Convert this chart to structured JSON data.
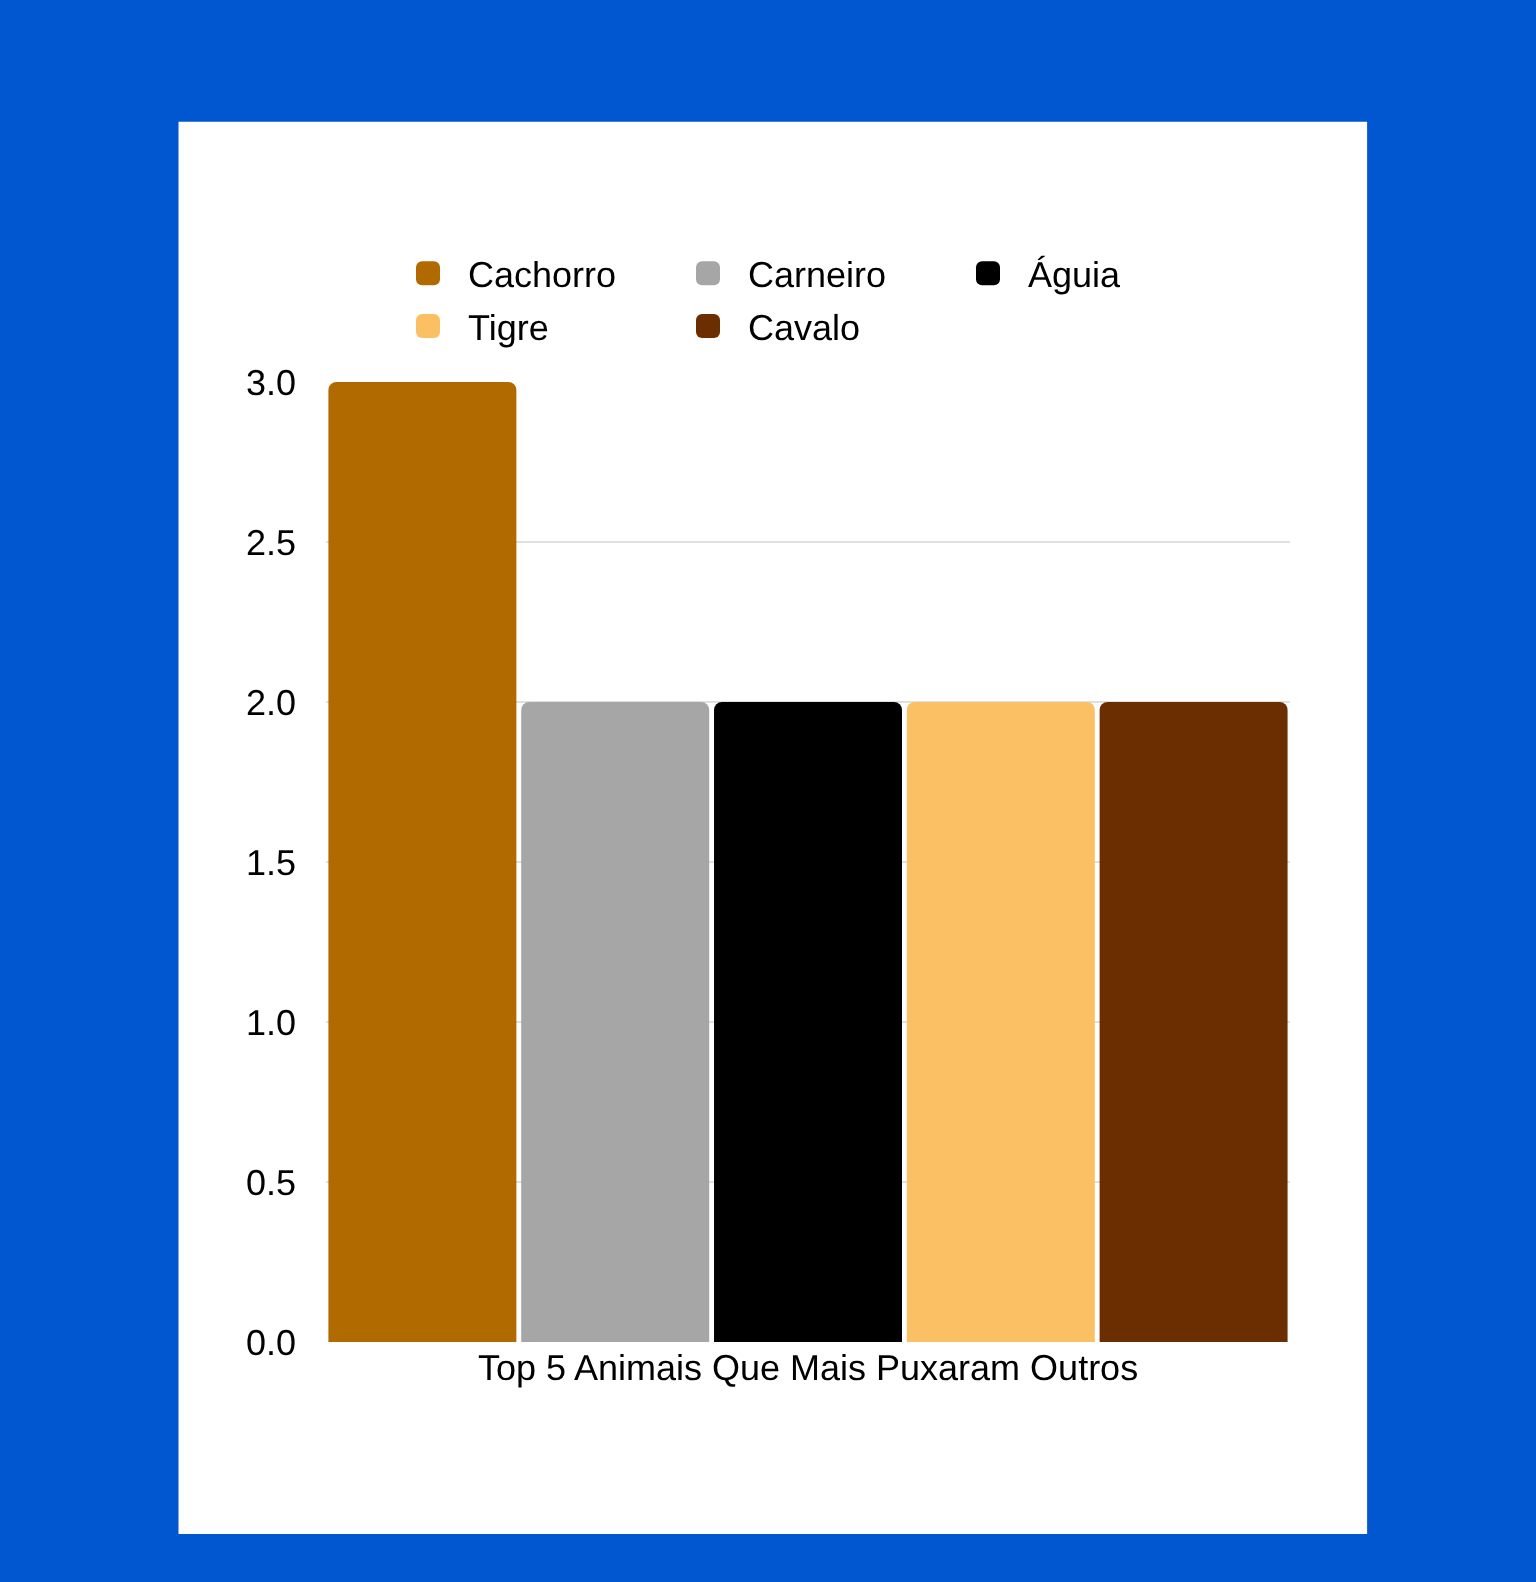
{
  "chart_data": {
    "type": "bar",
    "categories": [
      "Top 5 Animais Que Mais Puxaram Outros"
    ],
    "series": [
      {
        "name": "Cachorro",
        "color": "#b06a00",
        "values": [
          3
        ]
      },
      {
        "name": "Carneiro",
        "color": "#a6a6a6",
        "values": [
          2
        ]
      },
      {
        "name": "Águia",
        "color": "#000000",
        "values": [
          2
        ]
      },
      {
        "name": "Tigre",
        "color": "#fcc064",
        "values": [
          2
        ]
      },
      {
        "name": "Cavalo",
        "color": "#6b2e00",
        "values": [
          2
        ]
      }
    ],
    "ylim": [
      0,
      3
    ],
    "yticks": [
      {
        "value": 0,
        "label": "0.0"
      },
      {
        "value": 0.5,
        "label": "0.5"
      },
      {
        "value": 1,
        "label": "1.0"
      },
      {
        "value": 1.5,
        "label": "1.5"
      },
      {
        "value": 2,
        "label": "2.0"
      },
      {
        "value": 2.5,
        "label": "2.5"
      },
      {
        "value": 3,
        "label": "3.0"
      }
    ],
    "grid": "y",
    "legend": "top"
  }
}
